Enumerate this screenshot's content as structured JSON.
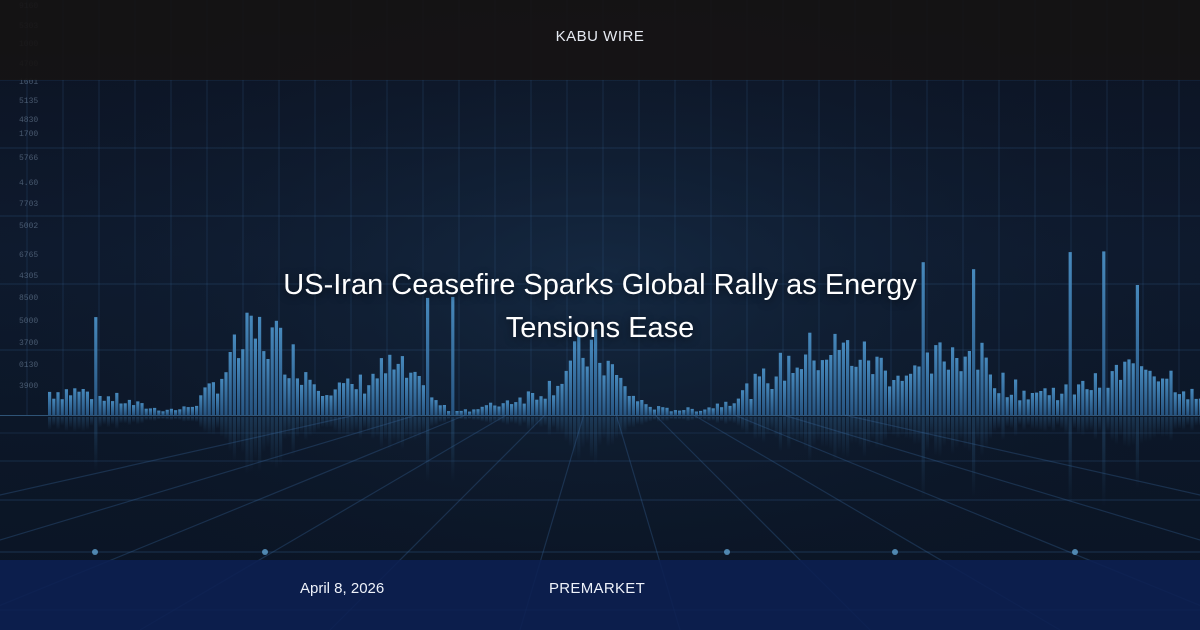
{
  "header": {
    "brand": "KABU WIRE"
  },
  "article": {
    "headline": "US-Iran Ceasefire Sparks Global Rally as Energy Tensions Ease"
  },
  "footer": {
    "date": "April 8, 2026",
    "category": "PREMARKET"
  },
  "background": {
    "axis_labels": [
      "9160",
      "5303",
      "1000",
      "4700",
      "1601",
      "5135",
      "4830",
      "1700",
      "5766",
      "4.60",
      "7703",
      "5002",
      "6765",
      "4305",
      "8500",
      "5000",
      "3700",
      "0130",
      "3900"
    ],
    "colors": {
      "base": "#0c1322",
      "grid": "#3a6ea5",
      "bars": "#3f82b8",
      "top_band": "#161414",
      "bottom_band": "#0c2052"
    }
  }
}
